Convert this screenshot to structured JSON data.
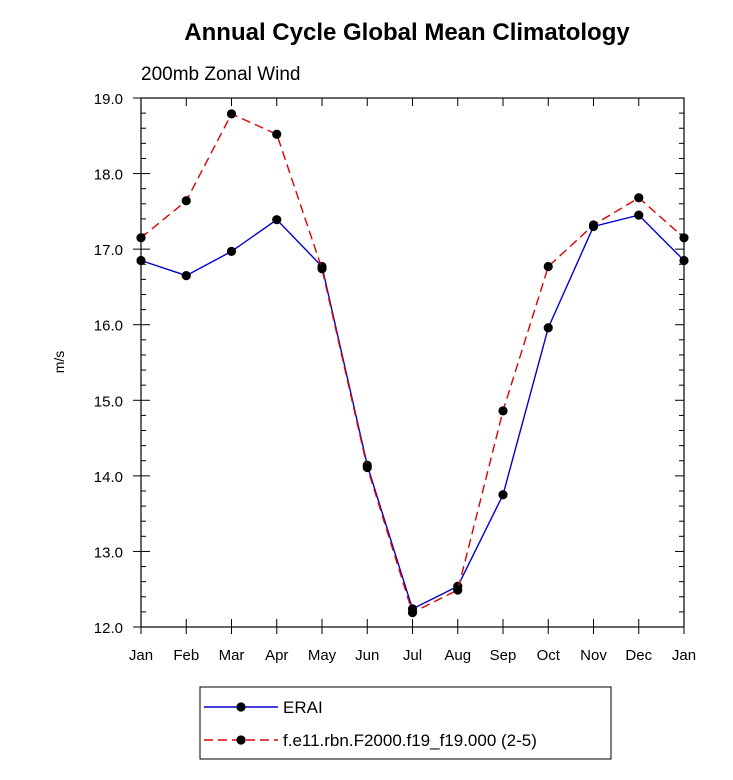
{
  "chart_data": {
    "type": "line",
    "title": "Annual Cycle Global Mean Climatology",
    "subtitle": "200mb Zonal Wind",
    "ylabel": "m/s",
    "xlabel": "",
    "categories": [
      "Jan",
      "Feb",
      "Mar",
      "Apr",
      "May",
      "Jun",
      "Jul",
      "Aug",
      "Sep",
      "Oct",
      "Nov",
      "Dec",
      "Jan"
    ],
    "ylim": [
      12.0,
      19.0
    ],
    "yticks": [
      "12.0",
      "13.0",
      "14.0",
      "15.0",
      "16.0",
      "17.0",
      "18.0",
      "19.0"
    ],
    "grid": false,
    "legend_position": "bottom",
    "series": [
      {
        "name": "ERAI",
        "color": "#0000cc",
        "line_style": "solid",
        "values": [
          16.85,
          16.65,
          16.97,
          17.39,
          16.77,
          14.14,
          12.24,
          12.54,
          13.75,
          15.96,
          17.3,
          17.45,
          16.85
        ]
      },
      {
        "name": "f.e11.rbn.F2000.f19_f19.000 (2-5)",
        "color": "#dd0000",
        "line_style": "dashed",
        "values": [
          17.15,
          17.64,
          18.79,
          18.52,
          16.74,
          14.11,
          12.19,
          12.49,
          14.86,
          16.77,
          17.32,
          17.68,
          17.15
        ]
      }
    ]
  }
}
